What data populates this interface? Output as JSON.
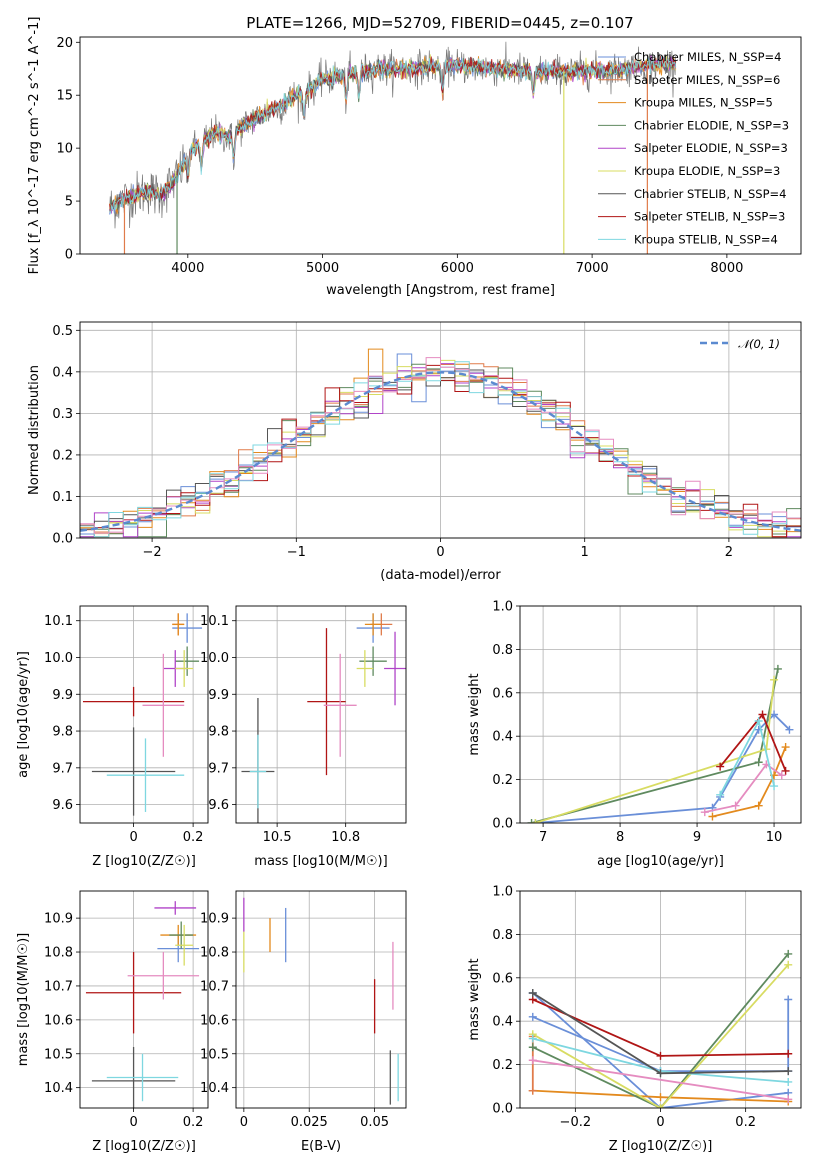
{
  "title": "PLATE=1266, MJD=52709, FIBERID=0445, z=0.107",
  "model_colors": [
    "#6a8fd8",
    "#e07b4a",
    "#e38a1e",
    "#5f8a5f",
    "#b044c8",
    "#d8dc62",
    "#555555",
    "#b01515",
    "#7ed7e0"
  ],
  "chart_data": [
    {
      "id": "spectrum",
      "type": "line",
      "xlabel": "wavelength [Angstrom, rest frame]",
      "ylabel": "Flux [f_λ 10^-17 erg cm^-2 s^-1 A^-1]",
      "xlim": [
        3200,
        8550
      ],
      "ylim": [
        0,
        20.5
      ],
      "xticks": [
        4000,
        5000,
        6000,
        7000,
        8000
      ],
      "yticks": [
        0,
        5,
        10,
        15,
        20
      ],
      "grid": false,
      "legend_position": "top-right",
      "x_knots": [
        3400,
        3500,
        3600,
        3700,
        3800,
        3900,
        3950,
        4000,
        4100,
        4200,
        4300,
        4400,
        4500,
        4600,
        4700,
        4800,
        4900,
        5000,
        5200,
        5400,
        5600,
        5800,
        6000,
        6200,
        6400,
        6600,
        6800,
        7000,
        7200,
        7400,
        7600
      ],
      "flux_knots": [
        4.2,
        5.0,
        5.5,
        6.0,
        5.5,
        7.0,
        8.0,
        9.5,
        10.5,
        11.5,
        11.0,
        12.0,
        12.8,
        13.5,
        14.0,
        15.0,
        15.5,
        16.5,
        17.0,
        17.5,
        17.5,
        17.7,
        17.8,
        17.6,
        17.4,
        17.2,
        17.2,
        17.3,
        17.4,
        17.8,
        18.0
      ],
      "legend": [
        {
          "label": "Chabrier MILES, N_SSP=4",
          "color": "#6a8fd8"
        },
        {
          "label": "Salpeter MILES, N_SSP=6",
          "color": "#e07b4a"
        },
        {
          "label": "Kroupa MILES, N_SSP=5",
          "color": "#e38a1e"
        },
        {
          "label": "Chabrier ELODIE, N_SSP=3",
          "color": "#5f8a5f"
        },
        {
          "label": "Salpeter ELODIE, N_SSP=3",
          "color": "#b044c8"
        },
        {
          "label": "Kroupa ELODIE, N_SSP=3",
          "color": "#d8dc62"
        },
        {
          "label": "Chabrier STELIB, N_SSP=4",
          "color": "#555555"
        },
        {
          "label": "Salpeter STELIB, N_SSP=3",
          "color": "#b01515"
        },
        {
          "label": "Kroupa STELIB, N_SSP=4",
          "color": "#7ed7e0"
        }
      ]
    },
    {
      "id": "residuals",
      "type": "histogram",
      "xlabel": "(data-model)/error",
      "ylabel": "Normed distribution",
      "xlim": [
        -2.5,
        2.5
      ],
      "ylim": [
        0,
        0.52
      ],
      "xticks": [
        -2,
        -1,
        0,
        1,
        2
      ],
      "yticks": [
        0.0,
        0.1,
        0.2,
        0.3,
        0.4,
        0.5
      ],
      "grid": true,
      "legend_position": "top-right",
      "bin_width": 0.1,
      "reference_curve": {
        "label": "𝒩(0, 1)",
        "color": "#5b8ad0",
        "style": "dashed"
      }
    },
    {
      "id": "age-vs-Z",
      "type": "errorbar",
      "xlabel": "Z [log10(Z/Z☉)]",
      "ylabel": "age [log10(age/yr)]",
      "xlim": [
        -0.18,
        0.25
      ],
      "ylim": [
        9.55,
        10.14
      ],
      "xticks": [
        0.0,
        0.2
      ],
      "yticks": [
        9.6,
        9.7,
        9.8,
        9.9,
        10.0,
        10.1
      ],
      "grid": true,
      "points": [
        {
          "x": 0.18,
          "y": 10.08,
          "xerr": 0.05,
          "yerr": 0.04,
          "color": "#6a8fd8"
        },
        {
          "x": 0.15,
          "y": 10.09,
          "xerr": 0.02,
          "yerr": 0.03,
          "color": "#e07b4a"
        },
        {
          "x": 0.15,
          "y": 10.09,
          "xerr": 0.02,
          "yerr": 0.03,
          "color": "#e38a1e"
        },
        {
          "x": 0.18,
          "y": 9.99,
          "xerr": 0.04,
          "yerr": 0.04,
          "color": "#5f8a5f"
        },
        {
          "x": 0.14,
          "y": 9.97,
          "xerr": 0.04,
          "yerr": 0.05,
          "color": "#b044c8"
        },
        {
          "x": 0.17,
          "y": 9.97,
          "xerr": 0.03,
          "yerr": 0.05,
          "color": "#d8dc62"
        },
        {
          "x": 0.0,
          "y": 9.69,
          "xerr": 0.14,
          "yerr": 0.12,
          "color": "#555555"
        },
        {
          "x": 0.0,
          "y": 9.88,
          "xerr": 0.17,
          "yerr": 0.04,
          "color": "#b01515"
        },
        {
          "x": 0.04,
          "y": 9.68,
          "xerr": 0.13,
          "yerr": 0.1,
          "color": "#7ed7e0"
        },
        {
          "x": 0.1,
          "y": 9.87,
          "xerr": 0.07,
          "yerr": 0.14,
          "color": "#e58cc0"
        }
      ]
    },
    {
      "id": "age-vs-mass",
      "type": "errorbar",
      "xlabel": "mass [log10(M/M☉)]",
      "ylabel": "",
      "xlim": [
        10.35,
        10.97
      ],
      "ylim": [
        9.55,
        10.14
      ],
      "xticks": [
        10.5,
        10.75
      ],
      "yticks": [
        9.6,
        9.7,
        9.8,
        9.9,
        10.0,
        10.1
      ],
      "grid": true,
      "points": [
        {
          "x": 10.85,
          "y": 10.08,
          "xerr": 0.06,
          "yerr": 0.04,
          "color": "#6a8fd8"
        },
        {
          "x": 10.88,
          "y": 10.09,
          "xerr": 0.04,
          "yerr": 0.03,
          "color": "#e07b4a"
        },
        {
          "x": 10.85,
          "y": 10.09,
          "xerr": 0.03,
          "yerr": 0.03,
          "color": "#e38a1e"
        },
        {
          "x": 10.85,
          "y": 9.99,
          "xerr": 0.05,
          "yerr": 0.04,
          "color": "#5f8a5f"
        },
        {
          "x": 10.93,
          "y": 9.97,
          "xerr": 0.04,
          "yerr": 0.1,
          "color": "#b044c8"
        },
        {
          "x": 10.82,
          "y": 9.97,
          "xerr": 0.03,
          "yerr": 0.05,
          "color": "#d8dc62"
        },
        {
          "x": 10.43,
          "y": 9.69,
          "xerr": 0.06,
          "yerr": 0.2,
          "color": "#555555"
        },
        {
          "x": 10.68,
          "y": 9.88,
          "xerr": 0.07,
          "yerr": 0.2,
          "color": "#b01515"
        },
        {
          "x": 10.43,
          "y": 9.69,
          "xerr": 0.03,
          "yerr": 0.1,
          "color": "#7ed7e0"
        },
        {
          "x": 10.73,
          "y": 9.87,
          "xerr": 0.06,
          "yerr": 0.14,
          "color": "#e58cc0"
        }
      ]
    },
    {
      "id": "weight-vs-age",
      "type": "line",
      "xlabel": "age [log10(age/yr)]",
      "ylabel": "mass weight",
      "xlim": [
        6.7,
        10.35
      ],
      "ylim": [
        0,
        1.0
      ],
      "xticks": [
        7,
        8,
        9,
        10
      ],
      "yticks": [
        0.0,
        0.2,
        0.4,
        0.6,
        0.8,
        1.0
      ],
      "grid": true,
      "series": [
        {
          "color": "#6a8fd8",
          "x": [
            6.9,
            9.2,
            9.3,
            9.8,
            10.0,
            10.2
          ],
          "y": [
            0.0,
            0.07,
            0.12,
            0.43,
            0.5,
            0.43
          ]
        },
        {
          "color": "#e38a1e",
          "x": [
            9.2,
            9.8,
            10.0,
            10.15
          ],
          "y": [
            0.03,
            0.08,
            0.22,
            0.35
          ]
        },
        {
          "color": "#5f8a5f",
          "x": [
            6.85,
            9.8,
            10.05
          ],
          "y": [
            0.0,
            0.28,
            0.71
          ]
        },
        {
          "color": "#d8dc62",
          "x": [
            6.9,
            9.9,
            10.0
          ],
          "y": [
            0.0,
            0.34,
            0.66
          ]
        },
        {
          "color": "#b01515",
          "x": [
            9.3,
            9.85,
            10.15
          ],
          "y": [
            0.26,
            0.5,
            0.24
          ]
        },
        {
          "color": "#e58cc0",
          "x": [
            9.1,
            9.5,
            9.9,
            10.1
          ],
          "y": [
            0.05,
            0.08,
            0.27,
            0.22
          ]
        },
        {
          "color": "#7ed7e0",
          "x": [
            9.3,
            9.8,
            10.0
          ],
          "y": [
            0.13,
            0.47,
            0.17
          ]
        }
      ]
    },
    {
      "id": "mass-vs-Z",
      "type": "errorbar",
      "xlabel": "Z [log10(Z/Z☉)]",
      "ylabel": "mass [log10(M/M☉)]",
      "xlim": [
        -0.18,
        0.25
      ],
      "ylim": [
        10.34,
        10.98
      ],
      "xticks": [
        0.0,
        0.2
      ],
      "yticks": [
        10.4,
        10.5,
        10.6,
        10.7,
        10.8,
        10.9
      ],
      "grid": true,
      "points": [
        {
          "x": 0.15,
          "y": 10.81,
          "xerr": 0.07,
          "yerr": 0.04,
          "color": "#6a8fd8"
        },
        {
          "x": 0.15,
          "y": 10.85,
          "xerr": 0.06,
          "yerr": 0.03,
          "color": "#e38a1e"
        },
        {
          "x": 0.16,
          "y": 10.85,
          "xerr": 0.04,
          "yerr": 0.04,
          "color": "#5f8a5f"
        },
        {
          "x": 0.14,
          "y": 10.93,
          "xerr": 0.07,
          "yerr": 0.02,
          "color": "#b044c8"
        },
        {
          "x": 0.17,
          "y": 10.82,
          "xerr": 0.03,
          "yerr": 0.06,
          "color": "#d8dc62"
        },
        {
          "x": 0.0,
          "y": 10.42,
          "xerr": 0.14,
          "yerr": 0.1,
          "color": "#555555"
        },
        {
          "x": 0.0,
          "y": 10.68,
          "xerr": 0.16,
          "yerr": 0.12,
          "color": "#b01515"
        },
        {
          "x": 0.03,
          "y": 10.43,
          "xerr": 0.12,
          "yerr": 0.07,
          "color": "#7ed7e0"
        },
        {
          "x": 0.1,
          "y": 10.73,
          "xerr": 0.12,
          "yerr": 0.07,
          "color": "#e58cc0"
        }
      ]
    },
    {
      "id": "mass-vs-ebv",
      "type": "errorbar",
      "xlabel": "E(B-V)",
      "ylabel": "",
      "xlim": [
        -0.003,
        0.062
      ],
      "ylim": [
        10.34,
        10.98
      ],
      "xticks": [
        0.0,
        0.025,
        0.05
      ],
      "yticks": [
        10.4,
        10.5,
        10.6,
        10.7,
        10.8,
        10.9
      ],
      "grid": true,
      "points": [
        {
          "x": 0.016,
          "y": 10.85,
          "xerr": 0.0,
          "yerr": 0.08,
          "color": "#6a8fd8"
        },
        {
          "x": 0.01,
          "y": 10.85,
          "xerr": 0.0,
          "yerr": 0.05,
          "color": "#e38a1e"
        },
        {
          "x": 0.0,
          "y": 10.91,
          "xerr": 0.0,
          "yerr": 0.05,
          "color": "#b044c8"
        },
        {
          "x": 0.0,
          "y": 10.8,
          "xerr": 0.0,
          "yerr": 0.06,
          "color": "#d8dc62"
        },
        {
          "x": 0.05,
          "y": 10.64,
          "xerr": 0.0,
          "yerr": 0.08,
          "color": "#b01515"
        },
        {
          "x": 0.056,
          "y": 10.43,
          "xerr": 0.0,
          "yerr": 0.08,
          "color": "#555555"
        },
        {
          "x": 0.059,
          "y": 10.43,
          "xerr": 0.0,
          "yerr": 0.07,
          "color": "#7ed7e0"
        },
        {
          "x": 0.057,
          "y": 10.73,
          "xerr": 0.0,
          "yerr": 0.1,
          "color": "#e58cc0"
        }
      ]
    },
    {
      "id": "weight-vs-Z",
      "type": "line",
      "xlabel": "Z [log10(Z/Z☉)]",
      "ylabel": "mass weight",
      "xlim": [
        -0.33,
        0.33
      ],
      "ylim": [
        0,
        1.0
      ],
      "xticks": [
        -0.2,
        0.0,
        0.2
      ],
      "yticks": [
        0.0,
        0.2,
        0.4,
        0.6,
        0.8,
        1.0
      ],
      "grid": true,
      "series": [
        {
          "color": "#6a8fd8",
          "x": [
            -0.3,
            0.0,
            0.3,
            0.3
          ],
          "y": [
            0.42,
            0.17,
            0.17,
            0.5
          ]
        },
        {
          "color": "#6a8fd8",
          "x": [
            -0.3,
            0.0,
            0.3
          ],
          "y": [
            0.53,
            0.0,
            0.07
          ]
        },
        {
          "color": "#e38a1e",
          "x": [
            -0.3,
            0.0,
            0.3
          ],
          "y": [
            0.08,
            0.05,
            0.03
          ]
        },
        {
          "color": "#e07b4a",
          "x": [
            -0.3,
            -0.3
          ],
          "y": [
            0.08,
            0.33
          ]
        },
        {
          "color": "#5f8a5f",
          "x": [
            -0.3,
            0.0,
            0.3
          ],
          "y": [
            0.28,
            0.0,
            0.71
          ]
        },
        {
          "color": "#d8dc62",
          "x": [
            -0.3,
            0.0,
            0.3
          ],
          "y": [
            0.34,
            0.0,
            0.66
          ]
        },
        {
          "color": "#b01515",
          "x": [
            -0.3,
            0.0,
            0.3
          ],
          "y": [
            0.5,
            0.24,
            0.25
          ]
        },
        {
          "color": "#e58cc0",
          "x": [
            -0.3,
            0.3
          ],
          "y": [
            0.22,
            0.04
          ]
        },
        {
          "color": "#7ed7e0",
          "x": [
            -0.3,
            0.0,
            0.3
          ],
          "y": [
            0.32,
            0.17,
            0.12
          ]
        },
        {
          "color": "#555555",
          "x": [
            -0.3,
            0.0,
            0.3
          ],
          "y": [
            0.53,
            0.16,
            0.17
          ]
        }
      ]
    }
  ]
}
